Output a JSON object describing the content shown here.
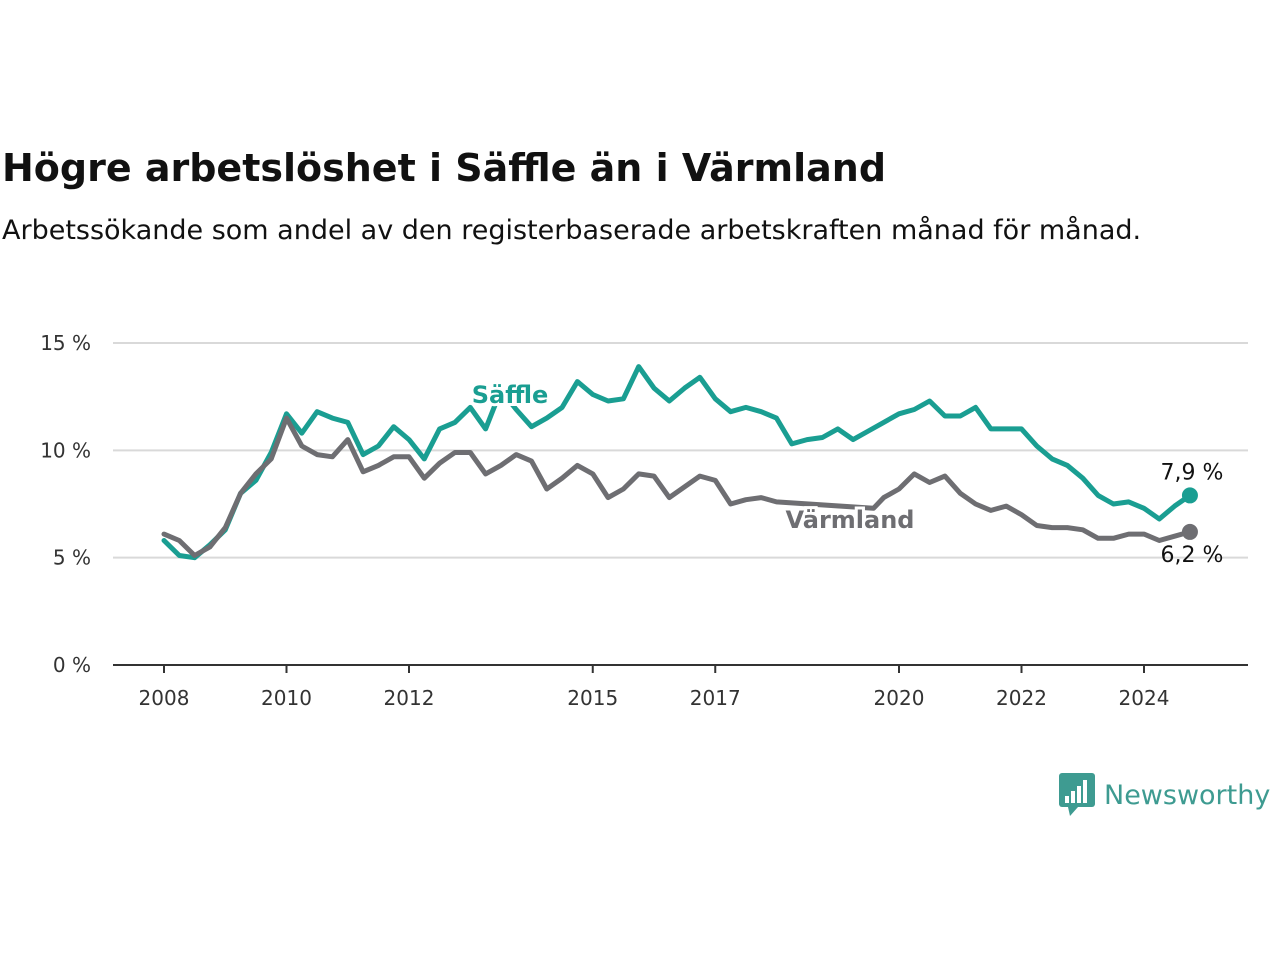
{
  "chart_data": {
    "type": "line",
    "title": "Högre arbetslöshet i Säffle än i Värmland",
    "subtitle": "Arbetssökande som andel av den registerbaserade arbetskraften månad för månad.",
    "ylim": [
      0,
      15
    ],
    "y_ticks": [
      {
        "value": 0,
        "label": "0 %"
      },
      {
        "value": 5,
        "label": "5 %"
      },
      {
        "value": 10,
        "label": "10 %"
      },
      {
        "value": 15,
        "label": "15 %"
      }
    ],
    "x_ticks": [
      {
        "value": "2008-01",
        "label": "2008"
      },
      {
        "value": "2010-01",
        "label": "2010"
      },
      {
        "value": "2012-01",
        "label": "2012"
      },
      {
        "value": "2015-01",
        "label": "2015"
      },
      {
        "value": "2017-01",
        "label": "2017"
      },
      {
        "value": "2020-01",
        "label": "2020"
      },
      {
        "value": "2022-01",
        "label": "2022"
      },
      {
        "value": "2024-01",
        "label": "2024"
      }
    ],
    "grid": true,
    "series": [
      {
        "name": "Säffle",
        "color": "#1a9e92",
        "end_label": "7,9 %",
        "points": [
          [
            "2008-01",
            5.8
          ],
          [
            "2008-04",
            5.1
          ],
          [
            "2008-07",
            5.0
          ],
          [
            "2008-10",
            5.6
          ],
          [
            "2009-01",
            6.3
          ],
          [
            "2009-04",
            8.0
          ],
          [
            "2009-07",
            8.6
          ],
          [
            "2009-10",
            9.9
          ],
          [
            "2010-01",
            11.7
          ],
          [
            "2010-04",
            10.8
          ],
          [
            "2010-07",
            11.8
          ],
          [
            "2010-10",
            11.5
          ],
          [
            "2011-01",
            11.3
          ],
          [
            "2011-04",
            9.8
          ],
          [
            "2011-07",
            10.2
          ],
          [
            "2011-10",
            11.1
          ],
          [
            "2012-01",
            10.5
          ],
          [
            "2012-04",
            9.6
          ],
          [
            "2012-07",
            11.0
          ],
          [
            "2012-10",
            11.3
          ],
          [
            "2013-01",
            12.0
          ],
          [
            "2013-04",
            11.0
          ],
          [
            "2013-07",
            12.8
          ],
          [
            "2013-10",
            11.9
          ],
          [
            "2014-01",
            11.1
          ],
          [
            "2014-04",
            11.5
          ],
          [
            "2014-07",
            12.0
          ],
          [
            "2014-10",
            13.2
          ],
          [
            "2015-01",
            12.6
          ],
          [
            "2015-04",
            12.3
          ],
          [
            "2015-07",
            12.4
          ],
          [
            "2015-10",
            13.9
          ],
          [
            "2016-01",
            12.9
          ],
          [
            "2016-04",
            12.3
          ],
          [
            "2016-07",
            12.9
          ],
          [
            "2016-10",
            13.4
          ],
          [
            "2017-01",
            12.4
          ],
          [
            "2017-04",
            11.8
          ],
          [
            "2017-07",
            12.0
          ],
          [
            "2017-10",
            11.8
          ],
          [
            "2018-01",
            11.5
          ],
          [
            "2018-04",
            10.3
          ],
          [
            "2018-07",
            10.5
          ],
          [
            "2018-10",
            10.6
          ],
          [
            "2019-01",
            11.0
          ],
          [
            "2019-04",
            10.5
          ],
          [
            "2019-07",
            10.9
          ],
          [
            "2019-10",
            11.3
          ],
          [
            "2020-01",
            11.7
          ],
          [
            "2020-04",
            11.9
          ],
          [
            "2020-07",
            12.3
          ],
          [
            "2020-10",
            11.6
          ],
          [
            "2021-01",
            11.6
          ],
          [
            "2021-04",
            12.0
          ],
          [
            "2021-07",
            11.0
          ],
          [
            "2021-10",
            11.0
          ],
          [
            "2022-01",
            11.0
          ],
          [
            "2022-04",
            10.2
          ],
          [
            "2022-07",
            9.6
          ],
          [
            "2022-10",
            9.3
          ],
          [
            "2023-01",
            8.7
          ],
          [
            "2023-04",
            7.9
          ],
          [
            "2023-07",
            7.5
          ],
          [
            "2023-10",
            7.6
          ],
          [
            "2024-01",
            7.3
          ],
          [
            "2024-04",
            6.8
          ],
          [
            "2024-07",
            7.4
          ],
          [
            "2024-10",
            7.9
          ]
        ]
      },
      {
        "name": "Värmland",
        "color": "#6e6e72",
        "end_label": "6,2 %",
        "points": [
          [
            "2008-01",
            6.1
          ],
          [
            "2008-04",
            5.8
          ],
          [
            "2008-07",
            5.1
          ],
          [
            "2008-10",
            5.5
          ],
          [
            "2009-01",
            6.4
          ],
          [
            "2009-04",
            8.0
          ],
          [
            "2009-07",
            8.9
          ],
          [
            "2009-10",
            9.6
          ],
          [
            "2010-01",
            11.5
          ],
          [
            "2010-04",
            10.2
          ],
          [
            "2010-07",
            9.8
          ],
          [
            "2010-10",
            9.7
          ],
          [
            "2011-01",
            10.5
          ],
          [
            "2011-04",
            9.0
          ],
          [
            "2011-07",
            9.3
          ],
          [
            "2011-10",
            9.7
          ],
          [
            "2012-01",
            9.7
          ],
          [
            "2012-04",
            8.7
          ],
          [
            "2012-07",
            9.4
          ],
          [
            "2012-10",
            9.9
          ],
          [
            "2013-01",
            9.9
          ],
          [
            "2013-04",
            8.9
          ],
          [
            "2013-07",
            9.3
          ],
          [
            "2013-10",
            9.8
          ],
          [
            "2014-01",
            9.5
          ],
          [
            "2014-04",
            8.2
          ],
          [
            "2014-07",
            8.7
          ],
          [
            "2014-10",
            9.3
          ],
          [
            "2015-01",
            8.9
          ],
          [
            "2015-04",
            7.8
          ],
          [
            "2015-07",
            8.2
          ],
          [
            "2015-10",
            8.9
          ],
          [
            "2016-01",
            8.8
          ],
          [
            "2016-04",
            7.8
          ],
          [
            "2016-07",
            8.3
          ],
          [
            "2016-10",
            8.8
          ],
          [
            "2017-01",
            8.6
          ],
          [
            "2017-04",
            7.5
          ],
          [
            "2017-07",
            7.7
          ],
          [
            "2017-10",
            7.8
          ],
          [
            "2018-01",
            7.6
          ],
          [
            "2019-08",
            7.3
          ],
          [
            "2019-10",
            7.8
          ],
          [
            "2020-01",
            8.2
          ],
          [
            "2020-04",
            8.9
          ],
          [
            "2020-07",
            8.5
          ],
          [
            "2020-10",
            8.8
          ],
          [
            "2021-01",
            8.0
          ],
          [
            "2021-04",
            7.5
          ],
          [
            "2021-07",
            7.2
          ],
          [
            "2021-10",
            7.4
          ],
          [
            "2022-01",
            7.0
          ],
          [
            "2022-04",
            6.5
          ],
          [
            "2022-07",
            6.4
          ],
          [
            "2022-10",
            6.4
          ],
          [
            "2023-01",
            6.3
          ],
          [
            "2023-04",
            5.9
          ],
          [
            "2023-07",
            5.9
          ],
          [
            "2023-10",
            6.1
          ],
          [
            "2024-01",
            6.1
          ],
          [
            "2024-04",
            5.8
          ],
          [
            "2024-07",
            6.0
          ],
          [
            "2024-10",
            6.2
          ]
        ]
      }
    ]
  },
  "brand": {
    "name": "Newsworthy",
    "color": "#3e9b91",
    "icon": "bar-chart-speech-icon"
  }
}
